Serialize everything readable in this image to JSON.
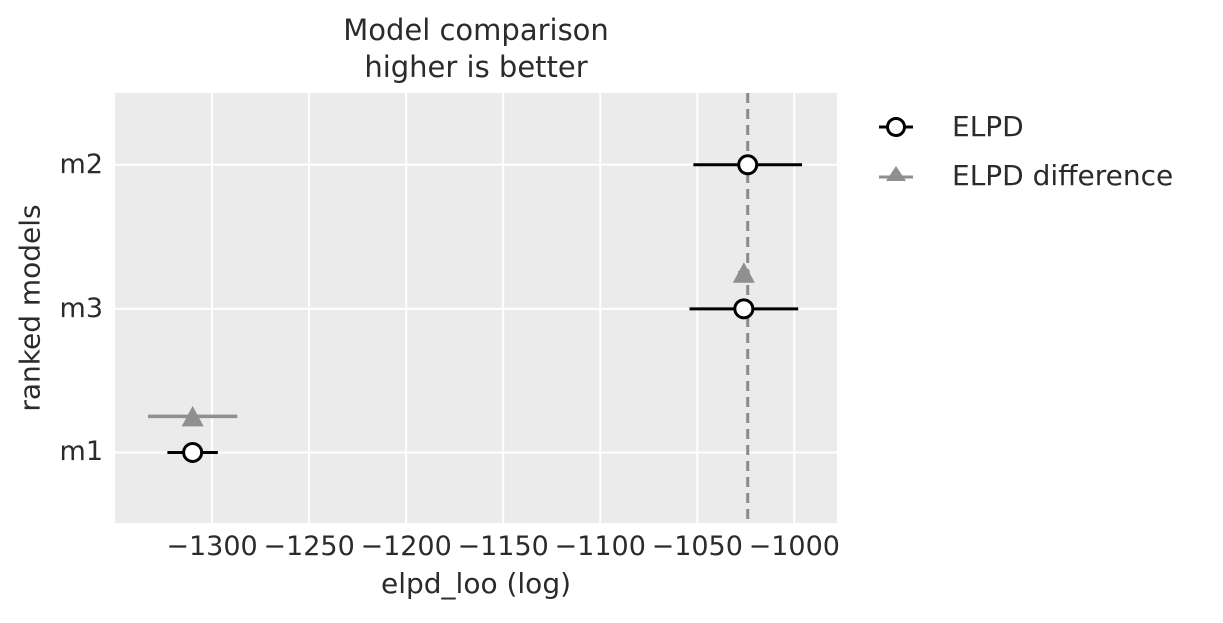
{
  "figure": {
    "title_line1": "Model comparison",
    "title_line2": "higher is better",
    "xlabel": "elpd_loo (log)",
    "ylabel": "ranked models"
  },
  "legend": {
    "items": [
      {
        "label": "ELPD",
        "marker": "open-circle"
      },
      {
        "label": "ELPD difference",
        "marker": "gray-triangle"
      }
    ]
  },
  "chart_data": {
    "type": "scatter",
    "title": "Model comparison — higher is better",
    "xlabel": "elpd_loo (log)",
    "ylabel": "ranked models",
    "xlim": [
      -1350,
      -978
    ],
    "x_ticks": [
      -1300,
      -1250,
      -1200,
      -1150,
      -1100,
      -1050,
      -1000
    ],
    "grid": true,
    "legend_position": "outside-top-right",
    "vline": {
      "x": -1024,
      "style": "dashed"
    },
    "rows": [
      {
        "model": "m2",
        "rank": 0,
        "elpd_loo": -1024,
        "se": 28,
        "elpd_diff_x": null,
        "dse": null,
        "y_frac": 0.167
      },
      {
        "model": "m3",
        "rank": 1,
        "elpd_loo": -1026,
        "se": 28,
        "elpd_diff_x": -1026,
        "dse": 3,
        "y_frac": 0.502
      },
      {
        "model": "m1",
        "rank": 2,
        "elpd_loo": -1310,
        "se": 13,
        "elpd_diff_x": -1310,
        "dse": 23,
        "y_frac": 0.836
      }
    ],
    "series": [
      {
        "name": "ELPD",
        "marker": "circle"
      },
      {
        "name": "ELPD difference",
        "marker": "triangle"
      }
    ],
    "diff_row_offset_frac": -0.084
  },
  "colors": {
    "plot_bg": "#ebebeb",
    "grid": "#ffffff",
    "elpd": "#000000",
    "elpd_marker_fill": "#ffffff",
    "diff": "#8f8f8f",
    "vline": "#8a8a8a",
    "text": "#262626"
  }
}
